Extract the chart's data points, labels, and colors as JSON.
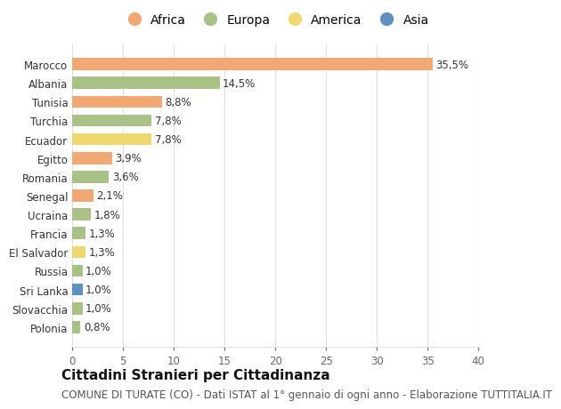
{
  "categories": [
    "Marocco",
    "Albania",
    "Tunisia",
    "Turchia",
    "Ecuador",
    "Egitto",
    "Romania",
    "Senegal",
    "Ucraina",
    "Francia",
    "El Salvador",
    "Russia",
    "Sri Lanka",
    "Slovacchia",
    "Polonia"
  ],
  "values": [
    35.5,
    14.5,
    8.8,
    7.8,
    7.8,
    3.9,
    3.6,
    2.1,
    1.8,
    1.3,
    1.3,
    1.0,
    1.0,
    1.0,
    0.8
  ],
  "labels": [
    "35,5%",
    "14,5%",
    "8,8%",
    "7,8%",
    "7,8%",
    "3,9%",
    "3,6%",
    "2,1%",
    "1,8%",
    "1,3%",
    "1,3%",
    "1,0%",
    "1,0%",
    "1,0%",
    "0,8%"
  ],
  "continents": [
    "Africa",
    "Europa",
    "Africa",
    "Europa",
    "America",
    "Africa",
    "Europa",
    "Africa",
    "Europa",
    "Europa",
    "America",
    "Europa",
    "Asia",
    "Europa",
    "Europa"
  ],
  "continent_colors": {
    "Africa": "#F0A875",
    "Europa": "#A8C285",
    "America": "#F0D870",
    "Asia": "#6090C0"
  },
  "legend_items": [
    "Africa",
    "Europa",
    "America",
    "Asia"
  ],
  "title": "Cittadini Stranieri per Cittadinanza",
  "subtitle": "COMUNE DI TURATE (CO) - Dati ISTAT al 1° gennaio di ogni anno - Elaborazione TUTTITALIA.IT",
  "xlim": [
    0,
    40
  ],
  "xticks": [
    0,
    5,
    10,
    15,
    20,
    25,
    30,
    35,
    40
  ],
  "background_color": "#ffffff",
  "grid_color": "#e0e0e0",
  "title_fontsize": 11,
  "subtitle_fontsize": 8.5,
  "label_fontsize": 8.5,
  "tick_fontsize": 8.5,
  "legend_fontsize": 10
}
